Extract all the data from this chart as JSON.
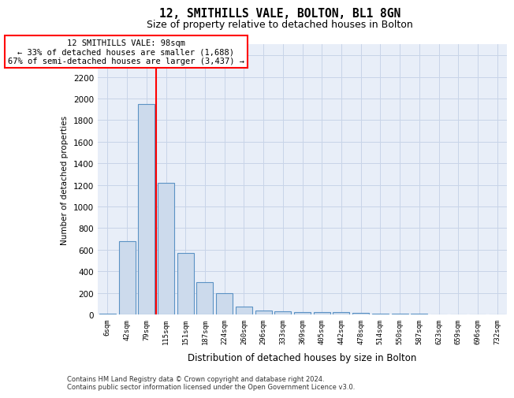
{
  "title": "12, SMITHILLS VALE, BOLTON, BL1 8GN",
  "subtitle": "Size of property relative to detached houses in Bolton",
  "xlabel": "Distribution of detached houses by size in Bolton",
  "ylabel": "Number of detached properties",
  "bin_labels": [
    "6sqm",
    "42sqm",
    "79sqm",
    "115sqm",
    "151sqm",
    "187sqm",
    "224sqm",
    "260sqm",
    "296sqm",
    "333sqm",
    "369sqm",
    "405sqm",
    "442sqm",
    "478sqm",
    "514sqm",
    "550sqm",
    "587sqm",
    "623sqm",
    "659sqm",
    "696sqm",
    "732sqm"
  ],
  "bar_values": [
    5,
    680,
    1950,
    1220,
    570,
    300,
    200,
    70,
    35,
    30,
    25,
    20,
    20,
    15,
    10,
    5,
    5,
    3,
    2,
    2,
    2
  ],
  "bar_color": "#ccdaec",
  "bar_edge_color": "#5b92c4",
  "bar_edge_width": 0.8,
  "red_line_x": 2.5,
  "annotation_line1": "12 SMITHILLS VALE: 98sqm",
  "annotation_line2": "← 33% of detached houses are smaller (1,688)",
  "annotation_line3": "67% of semi-detached houses are larger (3,437) →",
  "ylim_max": 2500,
  "ytick_max": 2400,
  "ytick_step": 200,
  "grid_color": "#c8d4e8",
  "bg_color": "#e8eef8",
  "footer_line1": "Contains HM Land Registry data © Crown copyright and database right 2024.",
  "footer_line2": "Contains public sector information licensed under the Open Government Licence v3.0."
}
